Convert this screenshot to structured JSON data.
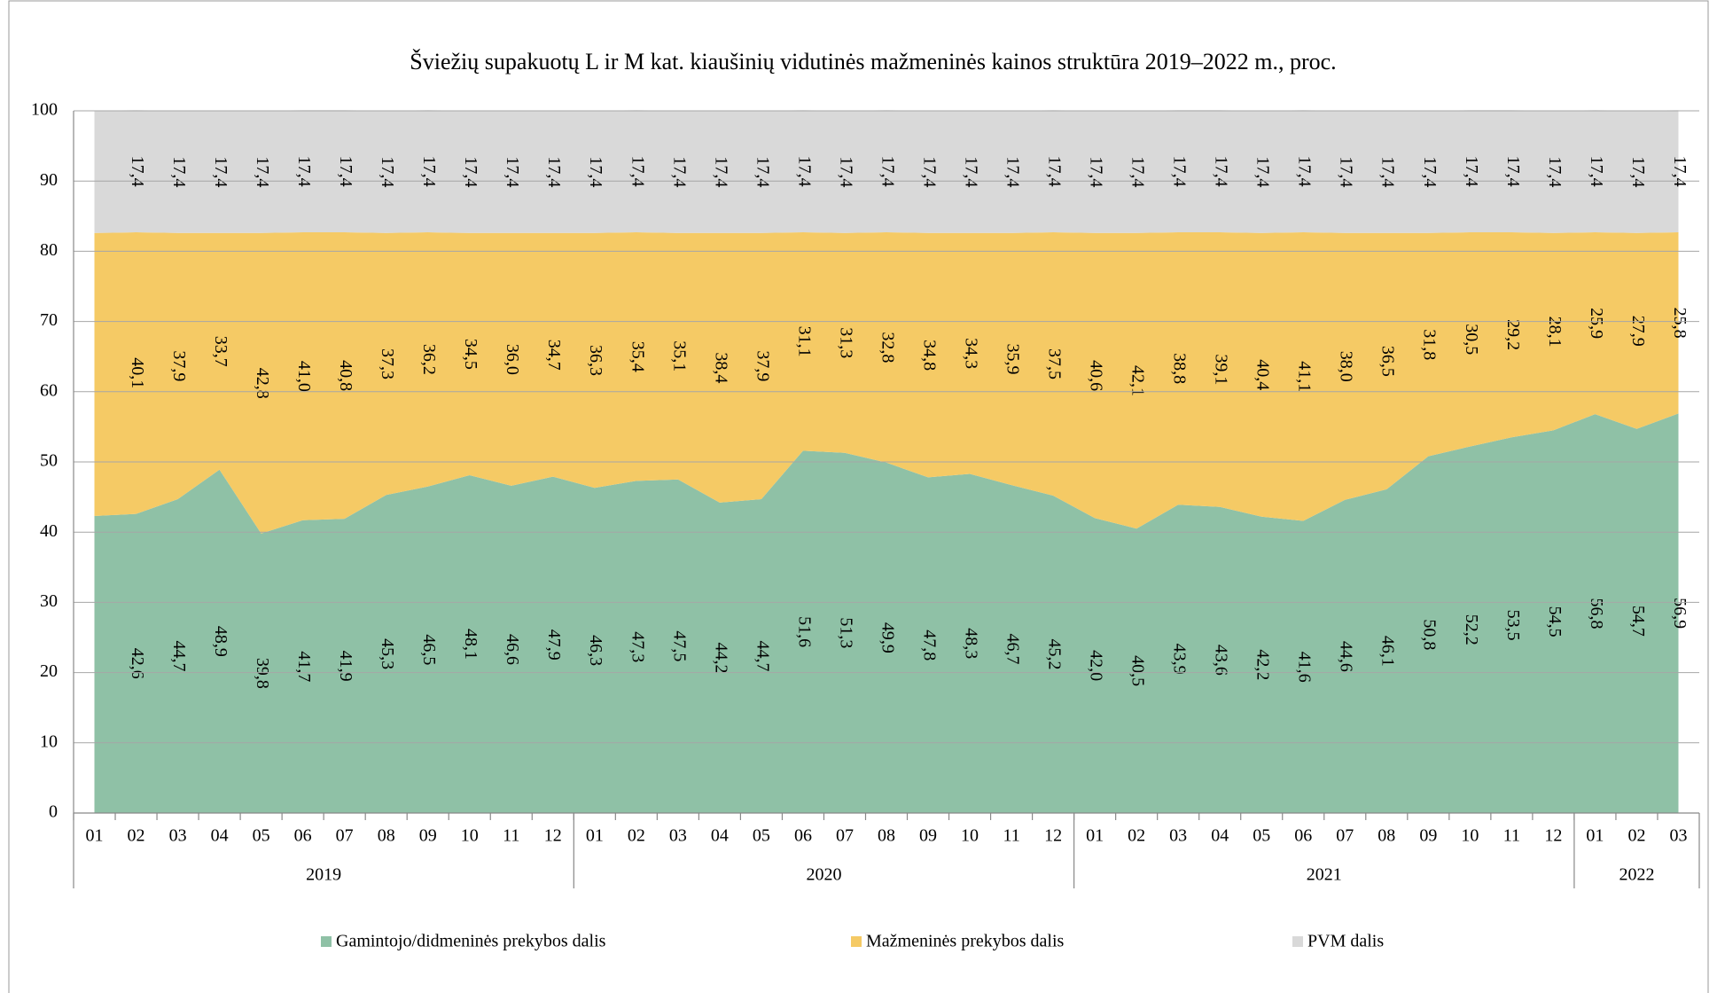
{
  "chart_data": {
    "type": "stacked_area",
    "title": "Šviežių supakuotų L ir M kat. kiaušinių vidutinės mažmeninės kainos struktūra 2019–2022 m., proc.",
    "categories": [
      "01",
      "02",
      "03",
      "04",
      "05",
      "06",
      "07",
      "08",
      "09",
      "10",
      "11",
      "12",
      "01",
      "02",
      "03",
      "04",
      "05",
      "06",
      "07",
      "08",
      "09",
      "10",
      "11",
      "12",
      "01",
      "02",
      "03",
      "04",
      "05",
      "06",
      "07",
      "08",
      "09",
      "10",
      "11",
      "12",
      "01",
      "02",
      "03"
    ],
    "years": [
      "2019",
      "2020",
      "2021",
      "2022"
    ],
    "ylim": [
      0,
      100
    ],
    "yticks": [
      0,
      10,
      20,
      30,
      40,
      50,
      60,
      70,
      80,
      90,
      100
    ],
    "grid": true,
    "legend": "bottom",
    "series": [
      {
        "name": "Gamintojo/didmeninės prekybos dalis",
        "color": "#8fc1a6",
        "values": [
          42.3,
          42.6,
          44.7,
          48.9,
          39.8,
          41.7,
          41.9,
          45.3,
          46.5,
          48.1,
          46.6,
          47.9,
          46.3,
          47.3,
          47.5,
          44.2,
          44.7,
          51.6,
          51.3,
          49.9,
          47.8,
          48.3,
          46.7,
          45.2,
          42.0,
          40.5,
          43.9,
          43.6,
          42.2,
          41.6,
          44.6,
          46.1,
          50.8,
          52.2,
          53.5,
          54.5,
          56.8,
          54.7,
          56.9
        ],
        "value_labels": [
          null,
          "42,6",
          "44,7",
          "48,9",
          "39,8",
          "41,7",
          "41,9",
          "45,3",
          "46,5",
          "48,1",
          "46,6",
          "47,9",
          "46,3",
          "47,3",
          "47,5",
          "44,2",
          "44,7",
          "51,6",
          "51,3",
          "49,9",
          "47,8",
          "48,3",
          "46,7",
          "45,2",
          "42,0",
          "40,5",
          "43,9",
          "43,6",
          "42,2",
          "41,6",
          "44,6",
          "46,1",
          "50,8",
          "52,2",
          "53,5",
          "54,5",
          "56,8",
          "54,7",
          "56,9"
        ]
      },
      {
        "name": "Mažmeninės prekybos dalis",
        "color": "#f5ca65",
        "values": [
          40.3,
          40.1,
          37.9,
          33.7,
          42.8,
          41.0,
          40.8,
          37.3,
          36.2,
          34.5,
          36.0,
          34.7,
          36.3,
          35.4,
          35.1,
          38.4,
          37.9,
          31.1,
          31.3,
          32.8,
          34.8,
          34.3,
          35.9,
          37.5,
          40.6,
          42.1,
          38.8,
          39.1,
          40.4,
          41.1,
          38.0,
          36.5,
          31.8,
          30.5,
          29.2,
          28.1,
          25.9,
          27.9,
          25.8
        ],
        "value_labels": [
          null,
          "40,1",
          "37,9",
          "33,7",
          "42,8",
          "41,0",
          "40,8",
          "37,3",
          "36,2",
          "34,5",
          "36,0",
          "34,7",
          "36,3",
          "35,4",
          "35,1",
          "38,4",
          "37,9",
          "31,1",
          "31,3",
          "32,8",
          "34,8",
          "34,3",
          "35,9",
          "37,5",
          "40,6",
          "42,1",
          "38,8",
          "39,1",
          "40,4",
          "41,1",
          "38,0",
          "36,5",
          "31,8",
          "30,5",
          "29,2",
          "28,1",
          "25,9",
          "27,9",
          "25,8"
        ]
      },
      {
        "name": "PVM dalis",
        "color": "#d9d9d9",
        "values": [
          17.4,
          17.4,
          17.4,
          17.4,
          17.4,
          17.4,
          17.4,
          17.4,
          17.4,
          17.4,
          17.4,
          17.4,
          17.4,
          17.4,
          17.4,
          17.4,
          17.4,
          17.4,
          17.4,
          17.4,
          17.4,
          17.4,
          17.4,
          17.4,
          17.4,
          17.4,
          17.4,
          17.4,
          17.4,
          17.4,
          17.4,
          17.4,
          17.4,
          17.4,
          17.4,
          17.4,
          17.4,
          17.4,
          17.4
        ],
        "value_labels": [
          null,
          "17,4",
          "17,4",
          "17,4",
          "17,4",
          "17,4",
          "17,4",
          "17,4",
          "17,4",
          "17,4",
          "17,4",
          "17,4",
          "17,4",
          "17,4",
          "17,4",
          "17,4",
          "17,4",
          "17,4",
          "17,4",
          "17,4",
          "17,4",
          "17,4",
          "17,4",
          "17,4",
          "17,4",
          "17,4",
          "17,4",
          "17,4",
          "17,4",
          "17,4",
          "17,4",
          "17,4",
          "17,4",
          "17,4",
          "17,4",
          "17,4",
          "17,4",
          "17,4",
          "17,4"
        ]
      }
    ]
  }
}
